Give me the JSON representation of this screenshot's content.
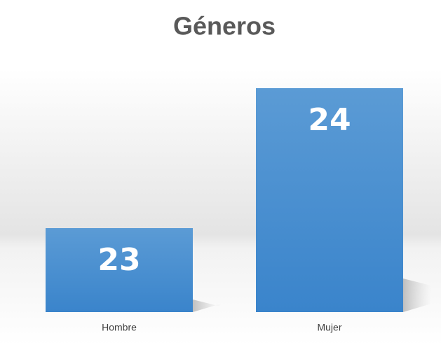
{
  "chart_data": {
    "type": "bar",
    "title": "Géneros",
    "categories": [
      "Hombre",
      "Mujer"
    ],
    "values": [
      23,
      24
    ],
    "color": "#4a8fd3",
    "ylim": [
      22.4,
      24.2
    ]
  }
}
